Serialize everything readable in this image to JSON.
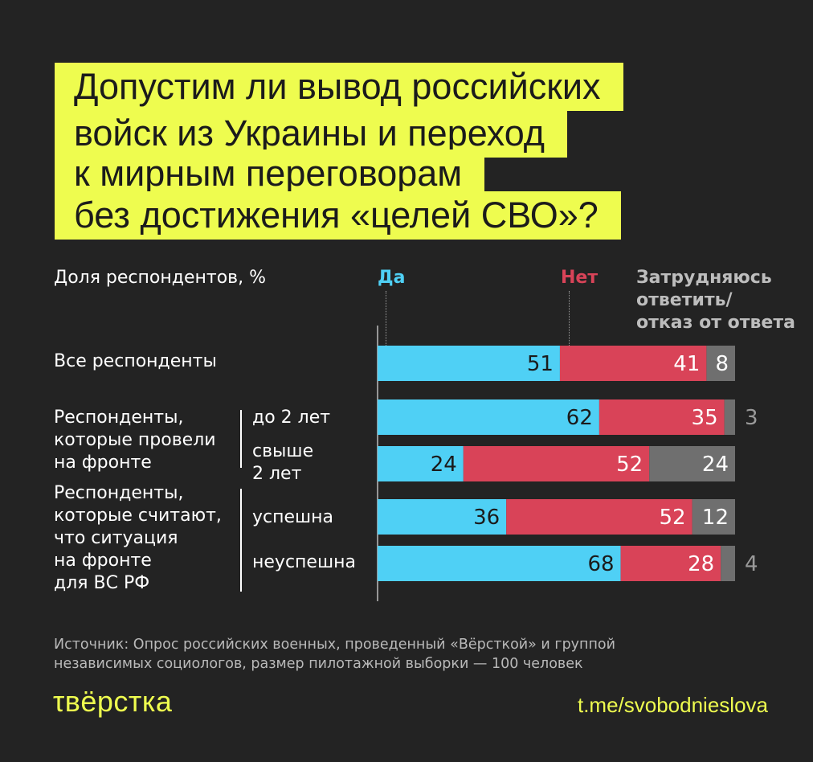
{
  "headline": {
    "lines": [
      "Допустим ли вывод российских",
      "войск из Украины и переход",
      "к мирным переговорам",
      "без достижения «целей СВО»?"
    ]
  },
  "axis_caption": "Доля респондентов, %",
  "legend": {
    "yes": "Да",
    "no": "Нет",
    "unsure": [
      "Затрудняюсь",
      "ответить/",
      "отказ от ответа"
    ]
  },
  "groups": {
    "all": "Все респонденты",
    "front_time": [
      "Респонденты,",
      "которые провели",
      "на фронте"
    ],
    "front_view": [
      "Респонденты,",
      "которые считают,",
      "что ситуация",
      "на фронте",
      "для ВС РФ"
    ]
  },
  "subgroups": {
    "under2": "до 2 лет",
    "over2": [
      "свыше",
      "2 лет"
    ],
    "success": "успешна",
    "fail": "неуспешна"
  },
  "colors": {
    "yes": "#4fd0f5",
    "no": "#d94358",
    "unsure": "#6f6f6f",
    "accent": "#eefc4f",
    "background": "#232323"
  },
  "chart_data": {
    "type": "bar",
    "stacked": true,
    "orientation": "horizontal",
    "categories": [
      "Все респонденты",
      "до 2 лет",
      "свыше 2 лет",
      "успешна",
      "неуспешна"
    ],
    "series": [
      {
        "name": "Да",
        "values": [
          51,
          62,
          24,
          36,
          68
        ]
      },
      {
        "name": "Нет",
        "values": [
          41,
          35,
          52,
          52,
          28
        ]
      },
      {
        "name": "Затрудняюсь ответить/ отказ от ответа",
        "values": [
          8,
          3,
          24,
          12,
          4
        ]
      }
    ],
    "xlim": [
      0,
      100
    ]
  },
  "source": [
    "Источник: Опрос российских военных, проведенный «Вёрсткой» и группой",
    "независимых социологов, размер пилотажной выборки — 100 человек"
  ],
  "brand": "τвёрстка",
  "link": "t.me/svobodnieslova"
}
